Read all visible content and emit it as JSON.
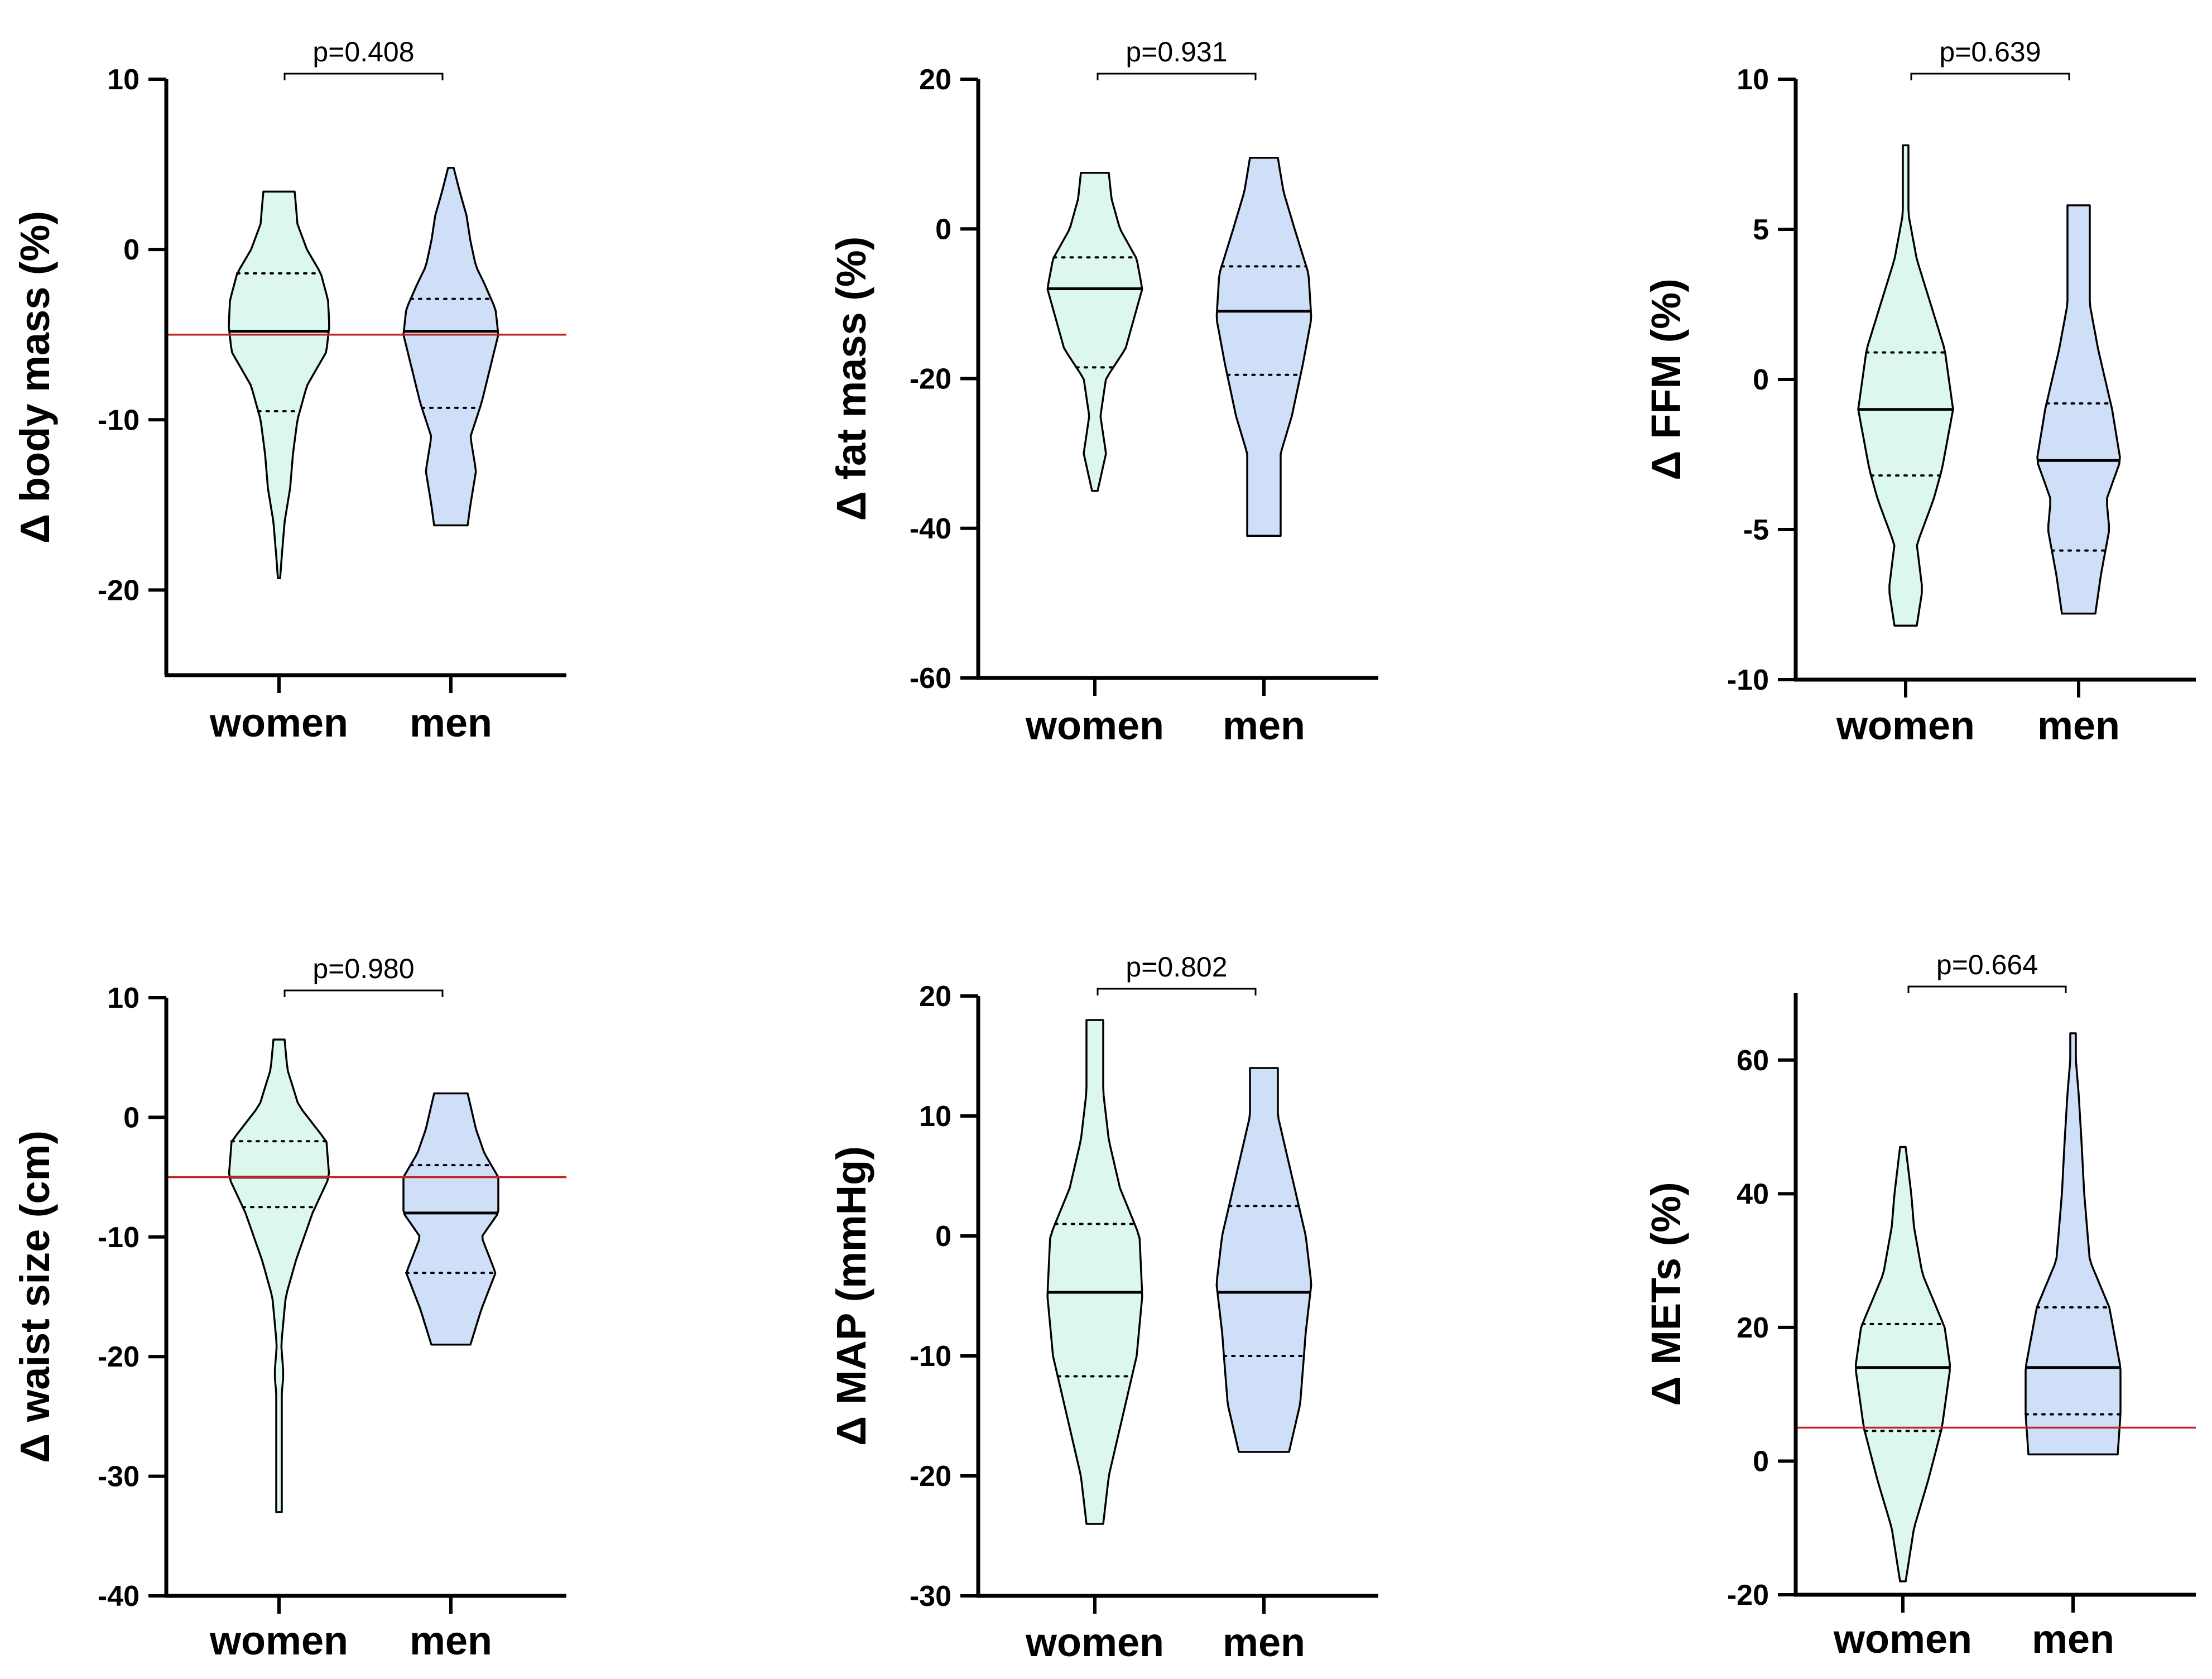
{
  "colors": {
    "women": "#dcf8ee",
    "men": "#cfdff7",
    "refline": "#c22424",
    "stroke": "#000000"
  },
  "chart_data": [
    {
      "type": "violin",
      "ylabel": "Δ body mass (%)",
      "categories": [
        "women",
        "men"
      ],
      "ylim": [
        -25,
        10
      ],
      "yticks": [
        10,
        0,
        -10,
        -20
      ],
      "ytick_labels": [
        "10",
        "0",
        "-10",
        "-20"
      ],
      "pvalue": "p=0.408",
      "refline": -5,
      "violins": [
        {
          "name": "women",
          "min": -19.3,
          "max": 3.4,
          "median": -4.8,
          "q1": -9.5,
          "q3": -1.4,
          "profile": [
            [
              -19.3,
              0.02
            ],
            [
              -18,
              0.05
            ],
            [
              -16,
              0.1
            ],
            [
              -14,
              0.2
            ],
            [
              -12,
              0.25
            ],
            [
              -10,
              0.33
            ],
            [
              -8,
              0.5
            ],
            [
              -6,
              0.85
            ],
            [
              -4.5,
              0.9
            ],
            [
              -3,
              0.88
            ],
            [
              -1.4,
              0.75
            ],
            [
              0,
              0.5
            ],
            [
              1.5,
              0.33
            ],
            [
              2.7,
              0.3
            ],
            [
              3.4,
              0.28
            ]
          ]
        },
        {
          "name": "men",
          "min": -16.2,
          "max": 4.8,
          "median": -4.8,
          "q1": -9.3,
          "q3": -2.9,
          "profile": [
            [
              -16.2,
              0.3
            ],
            [
              -15,
              0.35
            ],
            [
              -13,
              0.45
            ],
            [
              -11,
              0.35
            ],
            [
              -9,
              0.55
            ],
            [
              -7,
              0.7
            ],
            [
              -5,
              0.85
            ],
            [
              -3.5,
              0.8
            ],
            [
              -2,
              0.6
            ],
            [
              -1,
              0.45
            ],
            [
              0.5,
              0.35
            ],
            [
              2,
              0.28
            ],
            [
              3.5,
              0.15
            ],
            [
              4.8,
              0.05
            ]
          ]
        }
      ]
    },
    {
      "type": "violin",
      "ylabel": "Δ fat mass (%)",
      "categories": [
        "women",
        "men"
      ],
      "ylim": [
        -60,
        20
      ],
      "yticks": [
        20,
        0,
        -20,
        -40,
        -60
      ],
      "ytick_labels": [
        "20",
        "0",
        "-20",
        "-40",
        "-60"
      ],
      "pvalue": "p=0.931",
      "refline": null,
      "violins": [
        {
          "name": "women",
          "min": -35,
          "max": 7.5,
          "median": -8,
          "q1": -18.5,
          "q3": -3.8,
          "profile": [
            [
              -35,
              0.05
            ],
            [
              -30,
              0.2
            ],
            [
              -25,
              0.1
            ],
            [
              -20,
              0.2
            ],
            [
              -16,
              0.55
            ],
            [
              -12,
              0.7
            ],
            [
              -8,
              0.85
            ],
            [
              -4,
              0.75
            ],
            [
              0,
              0.45
            ],
            [
              4,
              0.3
            ],
            [
              7.5,
              0.25
            ]
          ]
        },
        {
          "name": "men",
          "min": -41,
          "max": 9.5,
          "median": -11,
          "q1": -19.5,
          "q3": -5,
          "profile": [
            [
              -41,
              0.3
            ],
            [
              -35,
              0.3
            ],
            [
              -30,
              0.3
            ],
            [
              -25,
              0.5
            ],
            [
              -18,
              0.7
            ],
            [
              -12,
              0.85
            ],
            [
              -6,
              0.8
            ],
            [
              0,
              0.55
            ],
            [
              5,
              0.35
            ],
            [
              9.5,
              0.25
            ]
          ]
        }
      ]
    },
    {
      "type": "violin",
      "ylabel": "Δ FFM (%)",
      "categories": [
        "women",
        "men"
      ],
      "ylim": [
        -10,
        10
      ],
      "yticks": [
        10,
        5,
        0,
        -5,
        -10
      ],
      "ytick_labels": [
        "10",
        "5",
        "0",
        "-5",
        "-10"
      ],
      "pvalue": "p=0.639",
      "refline": null,
      "violins": [
        {
          "name": "women",
          "min": -8.2,
          "max": 7.8,
          "median": -1,
          "q1": -3.2,
          "q3": 0.9,
          "profile": [
            [
              -8.2,
              0.2
            ],
            [
              -7,
              0.3
            ],
            [
              -5.5,
              0.2
            ],
            [
              -4,
              0.5
            ],
            [
              -3,
              0.65
            ],
            [
              -1,
              0.85
            ],
            [
              1,
              0.7
            ],
            [
              2.5,
              0.45
            ],
            [
              4,
              0.2
            ],
            [
              5.5,
              0.05
            ],
            [
              7,
              0.05
            ],
            [
              7.8,
              0.05
            ]
          ]
        },
        {
          "name": "men",
          "min": -7.8,
          "max": 5.8,
          "median": -2.7,
          "q1": -5.7,
          "q3": -0.8,
          "profile": [
            [
              -7.8,
              0.3
            ],
            [
              -6.5,
              0.4
            ],
            [
              -5,
              0.55
            ],
            [
              -4,
              0.5
            ],
            [
              -2.7,
              0.75
            ],
            [
              -1,
              0.6
            ],
            [
              1,
              0.35
            ],
            [
              2.5,
              0.2
            ],
            [
              4,
              0.2
            ],
            [
              5.8,
              0.2
            ]
          ]
        }
      ]
    },
    {
      "type": "violin",
      "ylabel": "Δ waist size (cm)",
      "categories": [
        "women",
        "men"
      ],
      "ylim": [
        -40,
        10
      ],
      "yticks": [
        10,
        0,
        -10,
        -20,
        -30,
        -40
      ],
      "ytick_labels": [
        "10",
        "0",
        "-10",
        "-20",
        "-30",
        "-40"
      ],
      "pvalue": "p=0.980",
      "refline": -5,
      "violins": [
        {
          "name": "women",
          "min": -33,
          "max": 6.5,
          "median": -5,
          "q1": -7.5,
          "q3": -2,
          "profile": [
            [
              -33,
              0.05
            ],
            [
              -28,
              0.05
            ],
            [
              -23,
              0.05
            ],
            [
              -21.5,
              0.08
            ],
            [
              -19,
              0.04
            ],
            [
              -15,
              0.12
            ],
            [
              -12,
              0.3
            ],
            [
              -8,
              0.6
            ],
            [
              -5,
              0.9
            ],
            [
              -2,
              0.85
            ],
            [
              1,
              0.35
            ],
            [
              4,
              0.15
            ],
            [
              6.5,
              0.1
            ]
          ]
        },
        {
          "name": "men",
          "min": -19,
          "max": 2,
          "median": -8,
          "q1": -13,
          "q3": -4,
          "profile": [
            [
              -19,
              0.35
            ],
            [
              -16,
              0.55
            ],
            [
              -13,
              0.8
            ],
            [
              -10,
              0.55
            ],
            [
              -8,
              0.85
            ],
            [
              -5,
              0.85
            ],
            [
              -3,
              0.6
            ],
            [
              -1,
              0.45
            ],
            [
              1,
              0.35
            ],
            [
              2,
              0.3
            ]
          ]
        }
      ]
    },
    {
      "type": "violin",
      "ylabel": "Δ MAP (mmHg)",
      "categories": [
        "women",
        "men"
      ],
      "ylim": [
        -30,
        20
      ],
      "yticks": [
        20,
        10,
        0,
        -10,
        -20,
        -30
      ],
      "ytick_labels": [
        "20",
        "10",
        "0",
        "-10",
        "-20",
        "-30"
      ],
      "pvalue": "p=0.802",
      "refline": null,
      "violins": [
        {
          "name": "women",
          "min": -24,
          "max": 18,
          "median": -4.7,
          "q1": -11.7,
          "q3": 1,
          "profile": [
            [
              -24,
              0.15
            ],
            [
              -20,
              0.25
            ],
            [
              -15,
              0.5
            ],
            [
              -10,
              0.75
            ],
            [
              -5,
              0.85
            ],
            [
              0,
              0.8
            ],
            [
              4,
              0.45
            ],
            [
              8,
              0.25
            ],
            [
              12,
              0.15
            ],
            [
              18,
              0.15
            ]
          ]
        },
        {
          "name": "men",
          "min": -18,
          "max": 14,
          "median": -4.7,
          "q1": -10,
          "q3": 2.5,
          "profile": [
            [
              -18,
              0.45
            ],
            [
              -14,
              0.65
            ],
            [
              -8,
              0.75
            ],
            [
              -4,
              0.85
            ],
            [
              0,
              0.75
            ],
            [
              4,
              0.55
            ],
            [
              7,
              0.4
            ],
            [
              10,
              0.25
            ],
            [
              14,
              0.25
            ]
          ]
        }
      ]
    },
    {
      "type": "violin",
      "ylabel": "Δ METs (%)",
      "categories": [
        "women",
        "men"
      ],
      "ylim": [
        -20,
        70
      ],
      "yticks": [
        60,
        40,
        20,
        0,
        -20
      ],
      "ytick_labels": [
        "60",
        "40",
        "20",
        "0",
        "-20"
      ],
      "pvalue": "p=0.664",
      "refline": 5,
      "violins": [
        {
          "name": "women",
          "min": -18,
          "max": 47,
          "median": 14,
          "q1": 4.5,
          "q3": 20.5,
          "profile": [
            [
              -18,
              0.05
            ],
            [
              -10,
              0.2
            ],
            [
              -3,
              0.45
            ],
            [
              5,
              0.7
            ],
            [
              14,
              0.85
            ],
            [
              20,
              0.75
            ],
            [
              28,
              0.35
            ],
            [
              35,
              0.2
            ],
            [
              40,
              0.15
            ],
            [
              47,
              0.05
            ]
          ]
        },
        {
          "name": "men",
          "min": 1,
          "max": 64,
          "median": 14,
          "q1": 7,
          "q3": 23,
          "profile": [
            [
              1,
              0.8
            ],
            [
              7,
              0.85
            ],
            [
              14,
              0.85
            ],
            [
              23,
              0.65
            ],
            [
              30,
              0.3
            ],
            [
              40,
              0.2
            ],
            [
              48,
              0.15
            ],
            [
              55,
              0.1
            ],
            [
              60,
              0.05
            ],
            [
              64,
              0.05
            ]
          ]
        }
      ]
    }
  ]
}
